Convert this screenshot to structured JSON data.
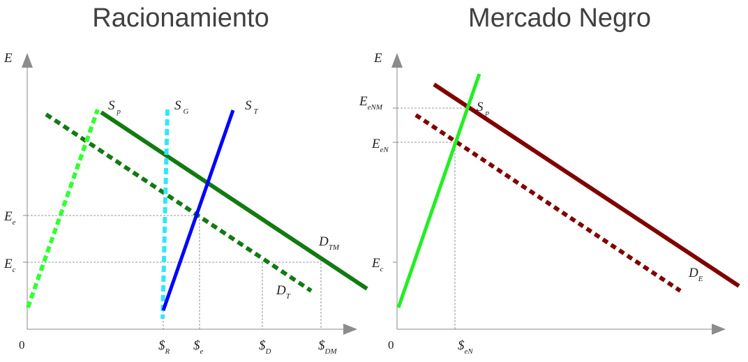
{
  "colors": {
    "axis": "#8c8c8c",
    "dark_green": "#137a13",
    "light_green": "#33ff33",
    "cyan": "#33e5ff",
    "blue": "#0000ff",
    "bright_green": "#22ee22",
    "maroon": "#800000"
  },
  "left": {
    "title": "Racionamiento",
    "y_axis": "E",
    "origin": "0",
    "y_ticks": [
      {
        "main": "E",
        "sub": "e"
      },
      {
        "main": "E",
        "sub": "c"
      }
    ],
    "x_ticks": [
      {
        "main": "$",
        "sub": "R"
      },
      {
        "main": "$",
        "sub": "e"
      },
      {
        "main": "$",
        "sub": "D"
      },
      {
        "main": "$",
        "sub": "DM"
      }
    ],
    "curves": [
      {
        "main": "S",
        "sub": "p"
      },
      {
        "main": "S",
        "sub": "G"
      },
      {
        "main": "S",
        "sub": "T"
      },
      {
        "main": "D",
        "sub": "TM"
      },
      {
        "main": "D",
        "sub": "T"
      }
    ]
  },
  "right": {
    "title": "Mercado Negro",
    "y_axis": "E",
    "origin": "0",
    "y_ticks": [
      {
        "main": "E",
        "sub": "eNM"
      },
      {
        "main": "E",
        "sub": "eN"
      },
      {
        "main": "E",
        "sub": "c"
      }
    ],
    "x_ticks": [
      {
        "main": "$",
        "sub": "eN"
      }
    ],
    "curves": [
      {
        "main": "S",
        "sub": "p"
      },
      {
        "main": "D",
        "sub": "E"
      }
    ]
  }
}
